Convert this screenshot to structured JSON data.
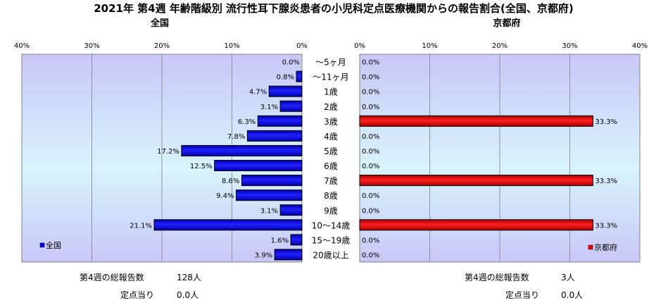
{
  "chart_data": {
    "type": "bar",
    "title": "2021年 第4週 年齢階級別 流行性耳下腺炎患者の小児科定点医療機関からの報告割合(全国、京都府)",
    "categories": [
      "～5ヶ月",
      "～11ヶ月",
      "1歳",
      "2歳",
      "3歳",
      "4歳",
      "5歳",
      "6歳",
      "7歳",
      "8歳",
      "9歳",
      "10～14歳",
      "15～19歳",
      "20歳以上"
    ],
    "tick_labels": [
      "0%",
      "10%",
      "20%",
      "30%",
      "40%"
    ],
    "xlim": [
      0,
      40
    ],
    "grid": true,
    "panels": [
      {
        "subtitle": "全国",
        "direction": "left",
        "series": [
          {
            "name": "全国",
            "color": "#0000ff",
            "values": [
              0.0,
              0.8,
              4.7,
              3.1,
              6.3,
              7.8,
              17.2,
              12.5,
              8.6,
              9.4,
              3.1,
              21.1,
              1.6,
              3.9
            ],
            "labels": [
              "0.0%",
              "0.8%",
              "4.7%",
              "3.1%",
              "6.3%",
              "7.8%",
              "17.2%",
              "12.5%",
              "8.6%",
              "9.4%",
              "3.1%",
              "21.1%",
              "1.6%",
              "3.9%"
            ]
          }
        ],
        "legend_position": "bottom-left",
        "footer": {
          "total_label": "第4週の総報告数",
          "total_value": "128人",
          "per_label": "定点当り",
          "per_value": "0.0人"
        }
      },
      {
        "subtitle": "京都府",
        "direction": "right",
        "series": [
          {
            "name": "京都府",
            "color": "#ff0000",
            "values": [
              0.0,
              0.0,
              0.0,
              0.0,
              33.3,
              0.0,
              0.0,
              0.0,
              33.3,
              0.0,
              0.0,
              33.3,
              0.0,
              0.0
            ],
            "labels": [
              "0.0%",
              "0.0%",
              "0.0%",
              "0.0%",
              "33.3%",
              "0.0%",
              "0.0%",
              "0.0%",
              "33.3%",
              "0.0%",
              "0.0%",
              "33.3%",
              "0.0%",
              "0.0%"
            ]
          }
        ],
        "legend_position": "bottom-right",
        "footer": {
          "total_label": "第4週の総報告数",
          "total_value": "3人",
          "per_label": "定点当り",
          "per_value": "0.0人"
        }
      }
    ]
  }
}
